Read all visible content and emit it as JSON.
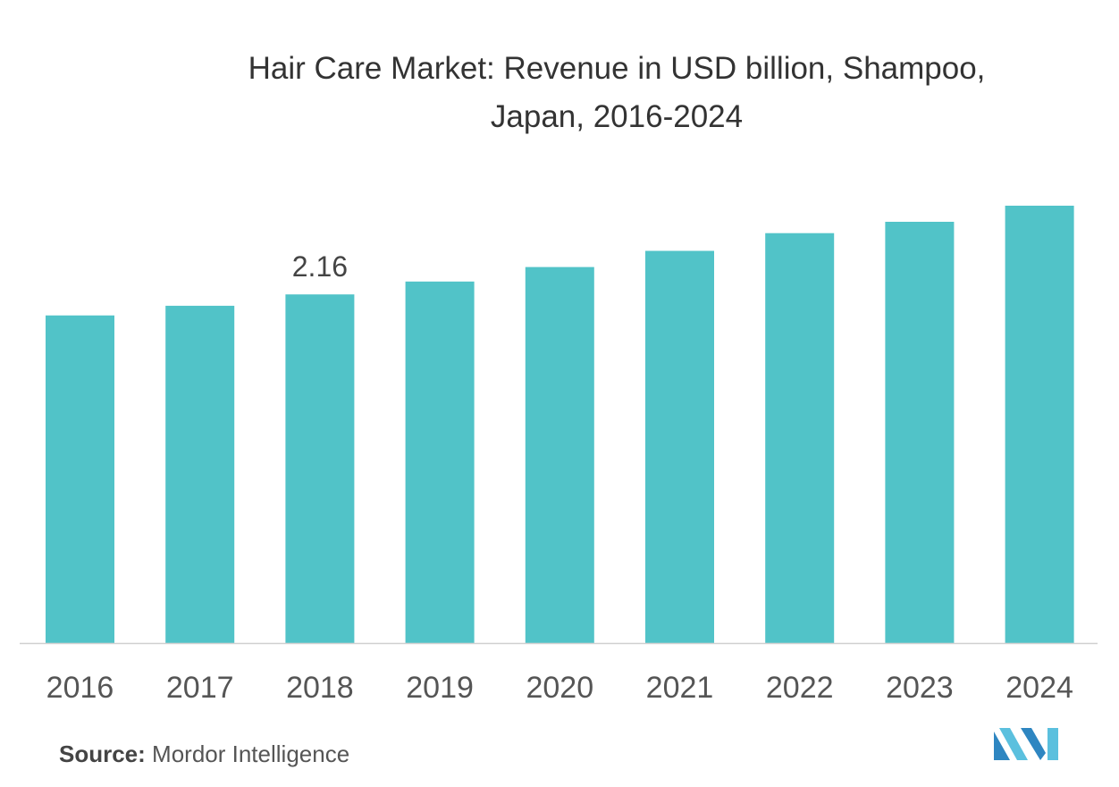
{
  "title_lines": [
    "Hair Care Market: Revenue in USD billion, Shampoo,",
    "Japan,  2016-2024"
  ],
  "source": {
    "label": "Source:",
    "text": "Mordor Intelligence"
  },
  "colors": {
    "bar": "#51C3C8",
    "axis": "#D0D0D0",
    "tick_text": "#555555",
    "label_text": "#444444"
  },
  "chart_data": {
    "type": "bar",
    "title": "Hair Care Market: Revenue in USD billion, Shampoo, Japan,  2016-2024",
    "categories": [
      "2016",
      "2017",
      "2018",
      "2019",
      "2020",
      "2021",
      "2022",
      "2023",
      "2024"
    ],
    "values": [
      2.03,
      2.09,
      2.16,
      2.24,
      2.33,
      2.43,
      2.54,
      2.61,
      2.71
    ],
    "data_labels": [
      null,
      null,
      "2.16",
      null,
      null,
      null,
      null,
      null,
      null
    ],
    "xlabel": "",
    "ylabel": "",
    "ylim": [
      0,
      2.71
    ],
    "grid": false,
    "legend": "none"
  }
}
